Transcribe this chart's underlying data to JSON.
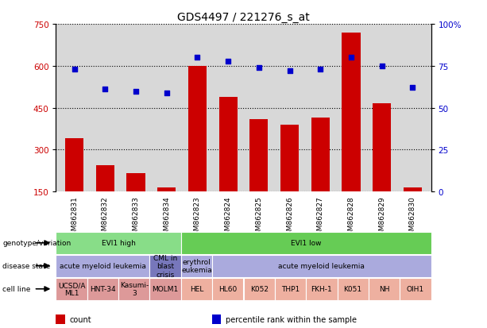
{
  "title": "GDS4497 / 221276_s_at",
  "samples": [
    "GSM862831",
    "GSM862832",
    "GSM862833",
    "GSM862834",
    "GSM862823",
    "GSM862824",
    "GSM862825",
    "GSM862826",
    "GSM862827",
    "GSM862828",
    "GSM862829",
    "GSM862830"
  ],
  "counts": [
    340,
    245,
    215,
    165,
    600,
    490,
    410,
    390,
    415,
    720,
    465,
    165
  ],
  "percentiles": [
    73,
    61,
    60,
    59,
    80,
    78,
    74,
    72,
    73,
    80,
    75,
    62
  ],
  "ylim_left": [
    150,
    750
  ],
  "ylim_right": [
    0,
    100
  ],
  "yticks_left": [
    150,
    300,
    450,
    600,
    750
  ],
  "yticks_right": [
    0,
    25,
    50,
    75,
    100
  ],
  "bar_color": "#cc0000",
  "dot_color": "#0000cc",
  "plot_bg": "#d8d8d8",
  "genotype_row": {
    "label": "genotype/variation",
    "groups": [
      {
        "text": "EVI1 high",
        "span": [
          0,
          3
        ],
        "color": "#88dd88"
      },
      {
        "text": "EVI1 low",
        "span": [
          4,
          11
        ],
        "color": "#66cc55"
      }
    ]
  },
  "disease_row": {
    "label": "disease state",
    "groups": [
      {
        "text": "acute myeloid leukemia",
        "span": [
          0,
          2
        ],
        "color": "#aaaadd"
      },
      {
        "text": "CML in\nblast\ncrisis",
        "span": [
          3,
          3
        ],
        "color": "#7777bb"
      },
      {
        "text": "erythrol\neukemia",
        "span": [
          4,
          4
        ],
        "color": "#aaaadd"
      },
      {
        "text": "acute myeloid leukemia",
        "span": [
          5,
          11
        ],
        "color": "#aaaadd"
      }
    ]
  },
  "cell_row": {
    "label": "cell line",
    "groups": [
      {
        "text": "UCSD/A\nML1",
        "span": [
          0,
          0
        ],
        "color": "#dd9999"
      },
      {
        "text": "HNT-34",
        "span": [
          1,
          1
        ],
        "color": "#dd9999"
      },
      {
        "text": "Kasumi-\n3",
        "span": [
          2,
          2
        ],
        "color": "#dd9999"
      },
      {
        "text": "MOLM1",
        "span": [
          3,
          3
        ],
        "color": "#dd9999"
      },
      {
        "text": "HEL",
        "span": [
          4,
          4
        ],
        "color": "#eeb0a0"
      },
      {
        "text": "HL60",
        "span": [
          5,
          5
        ],
        "color": "#eeb0a0"
      },
      {
        "text": "K052",
        "span": [
          6,
          6
        ],
        "color": "#eeb0a0"
      },
      {
        "text": "THP1",
        "span": [
          7,
          7
        ],
        "color": "#eeb0a0"
      },
      {
        "text": "FKH-1",
        "span": [
          8,
          8
        ],
        "color": "#eeb0a0"
      },
      {
        "text": "K051",
        "span": [
          9,
          9
        ],
        "color": "#eeb0a0"
      },
      {
        "text": "NH",
        "span": [
          10,
          10
        ],
        "color": "#eeb0a0"
      },
      {
        "text": "OIH1",
        "span": [
          11,
          11
        ],
        "color": "#eeb0a0"
      }
    ]
  },
  "legend": [
    {
      "color": "#cc0000",
      "label": "count"
    },
    {
      "color": "#0000cc",
      "label": "percentile rank within the sample"
    }
  ]
}
